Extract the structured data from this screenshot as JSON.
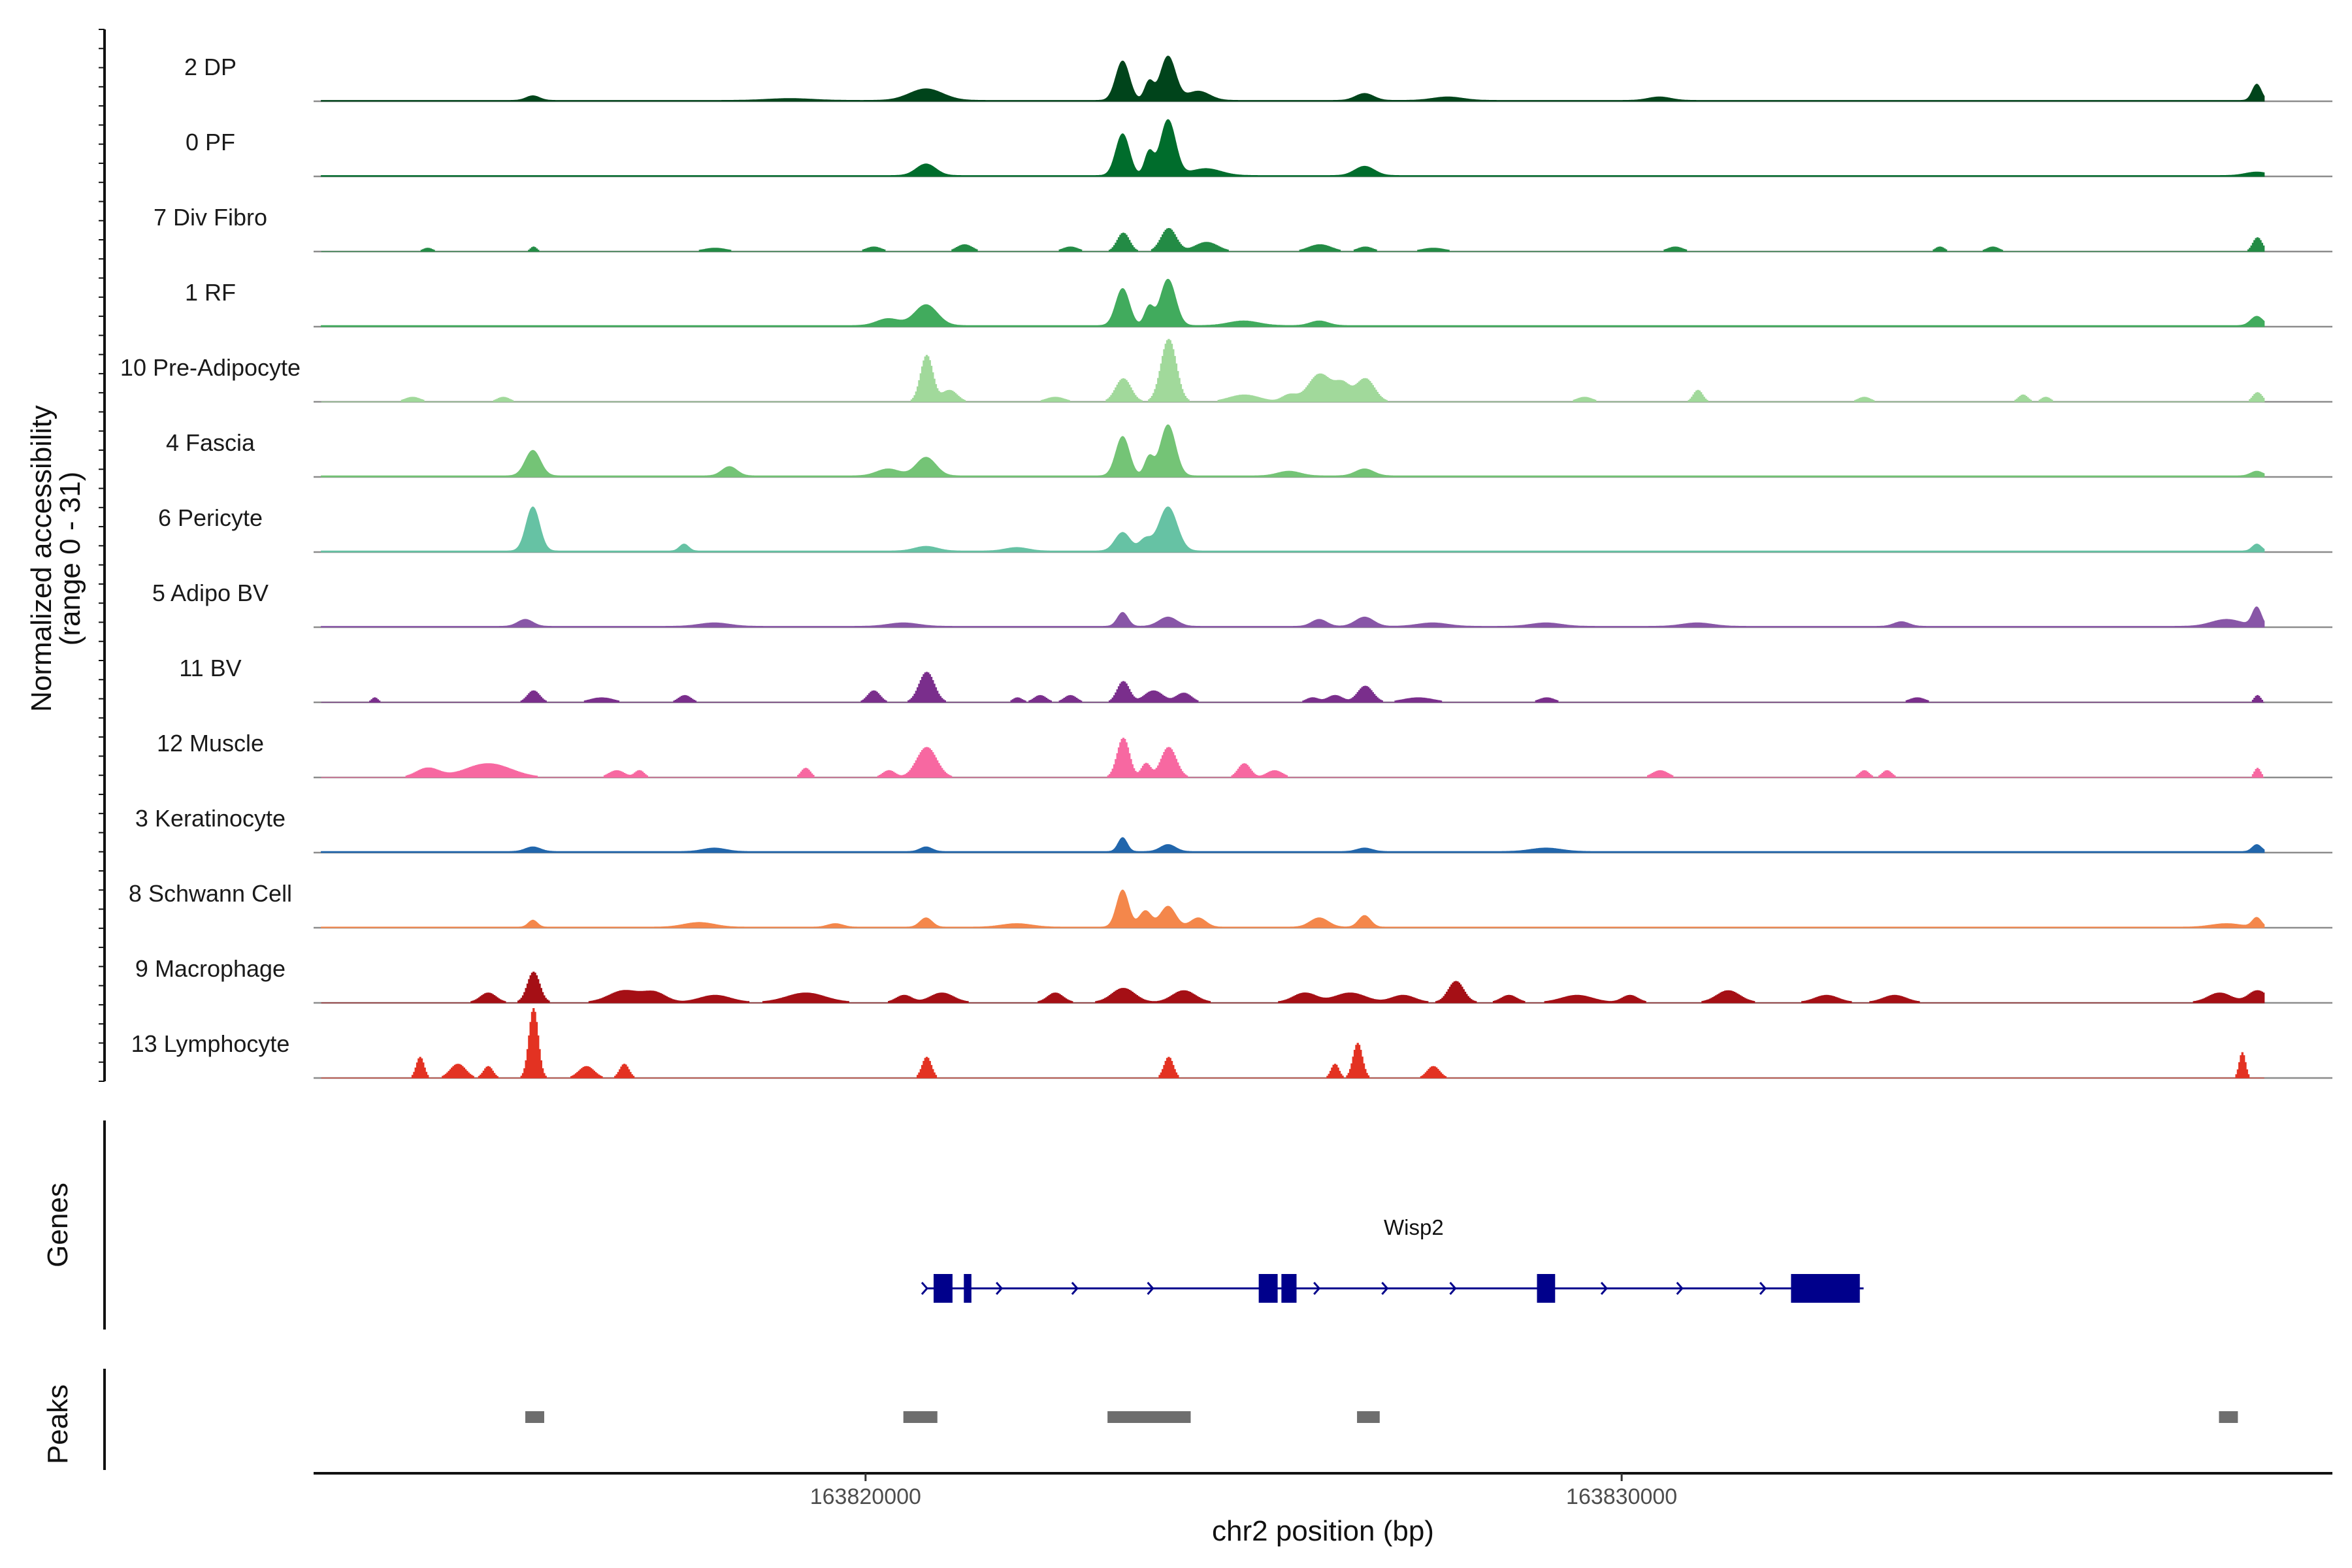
{
  "chart_data": {
    "type": "area",
    "title": "",
    "ylabel_line1": "Normalized accessibility",
    "ylabel_line2": "(range 0 - 31)",
    "y_range": [
      0,
      31
    ],
    "xlabel": "chr2 position (bp)",
    "chromosome": "chr2",
    "x_range": [
      163812700,
      163839400
    ],
    "x_ticks": [
      {
        "value": 163820000,
        "label": "163820000"
      },
      {
        "value": 163830000,
        "label": "163830000"
      }
    ],
    "genes_label": "Genes",
    "peaks_label": "Peaks",
    "tracks": [
      {
        "name": "2 DP",
        "color": "#00441b",
        "style": "smooth",
        "baseline": 0.4,
        "peaks": [
          [
            163823400,
            17,
            90
          ],
          [
            163824000,
            19,
            100
          ],
          [
            163823750,
            8,
            60
          ],
          [
            163820800,
            5,
            220
          ],
          [
            163815600,
            2,
            90
          ],
          [
            163826600,
            3,
            120
          ],
          [
            163824400,
            4,
            150
          ],
          [
            163838400,
            7,
            60
          ],
          [
            163827700,
            1.5,
            200
          ],
          [
            163830500,
            1.5,
            150
          ],
          [
            163819000,
            0.8,
            300
          ]
        ]
      },
      {
        "name": "0 PF",
        "color": "#006d2c",
        "style": "smooth",
        "baseline": 0.4,
        "peaks": [
          [
            163823400,
            18,
            90
          ],
          [
            163824000,
            24,
            100
          ],
          [
            163823750,
            10,
            60
          ],
          [
            163820800,
            5,
            130
          ],
          [
            163826600,
            4,
            130
          ],
          [
            163838400,
            1.5,
            150
          ],
          [
            163824500,
            3,
            200
          ]
        ]
      },
      {
        "name": "7 Div Fibro",
        "color": "#238b45",
        "style": "blocky",
        "baseline": 0,
        "peaks": [
          [
            163823400,
            8,
            80
          ],
          [
            163824000,
            10,
            100
          ],
          [
            163824500,
            4,
            150
          ],
          [
            163822700,
            2,
            100
          ],
          [
            163826000,
            3,
            150
          ],
          [
            163826600,
            2,
            100
          ],
          [
            163820100,
            2,
            100
          ],
          [
            163821300,
            3,
            100
          ],
          [
            163815600,
            2,
            40
          ],
          [
            163814200,
            1.5,
            60
          ],
          [
            163838400,
            6,
            60
          ],
          [
            163830700,
            2,
            100
          ],
          [
            163834200,
            2,
            60
          ],
          [
            163834900,
            2,
            80
          ],
          [
            163818000,
            1.5,
            150
          ],
          [
            163827500,
            1.5,
            150
          ]
        ]
      },
      {
        "name": "1 RF",
        "color": "#41ab5d",
        "style": "smooth",
        "baseline": 0.5,
        "peaks": [
          [
            163823400,
            16,
            90
          ],
          [
            163824000,
            20,
            100
          ],
          [
            163823750,
            8,
            60
          ],
          [
            163820800,
            9,
            150
          ],
          [
            163820300,
            3,
            150
          ],
          [
            163826000,
            2,
            120
          ],
          [
            163838400,
            4,
            80
          ],
          [
            163825000,
            2,
            200
          ]
        ]
      },
      {
        "name": "10 Pre-Adipocyte",
        "color": "#a1d99b",
        "style": "blocky",
        "baseline": 0,
        "peaks": [
          [
            163824000,
            27,
            100
          ],
          [
            163823400,
            10,
            100
          ],
          [
            163820800,
            20,
            80
          ],
          [
            163821100,
            5,
            100
          ],
          [
            163826000,
            12,
            150
          ],
          [
            163826600,
            10,
            120
          ],
          [
            163826300,
            7,
            100
          ],
          [
            163825000,
            3,
            200
          ],
          [
            163814000,
            2,
            100
          ],
          [
            163815200,
            2,
            80
          ],
          [
            163822500,
            2,
            120
          ],
          [
            163831000,
            5,
            60
          ],
          [
            163833200,
            2,
            80
          ],
          [
            163835300,
            3,
            60
          ],
          [
            163835600,
            2,
            60
          ],
          [
            163829500,
            2,
            100
          ],
          [
            163838400,
            4,
            60
          ],
          [
            163825600,
            3,
            100
          ]
        ]
      },
      {
        "name": "4 Fascia",
        "color": "#74c476",
        "style": "smooth",
        "baseline": 0.5,
        "peaks": [
          [
            163823400,
            17,
            90
          ],
          [
            163824000,
            22,
            100
          ],
          [
            163823750,
            8,
            60
          ],
          [
            163815600,
            11,
            100
          ],
          [
            163820800,
            8,
            130
          ],
          [
            163820300,
            3,
            150
          ],
          [
            163818200,
            4,
            100
          ],
          [
            163826600,
            3,
            120
          ],
          [
            163825600,
            2,
            150
          ],
          [
            163838400,
            2,
            80
          ]
        ]
      },
      {
        "name": "6 Pericyte",
        "color": "#66c2a4",
        "style": "smooth",
        "baseline": 0.5,
        "peaks": [
          [
            163815600,
            19,
            90
          ],
          [
            163824000,
            19,
            120
          ],
          [
            163823400,
            8,
            100
          ],
          [
            163823700,
            5,
            80
          ],
          [
            163817600,
            3,
            60
          ],
          [
            163820800,
            2,
            150
          ],
          [
            163838400,
            3,
            60
          ],
          [
            163822000,
            1.5,
            150
          ]
        ]
      },
      {
        "name": "5 Adipo BV",
        "color": "#8856a7",
        "style": "smooth",
        "baseline": 0.4,
        "peaks": [
          [
            163823400,
            6,
            70
          ],
          [
            163824000,
            4,
            120
          ],
          [
            163815500,
            3,
            100
          ],
          [
            163826600,
            4,
            120
          ],
          [
            163826000,
            3,
            100
          ],
          [
            163838400,
            8,
            60
          ],
          [
            163838000,
            3,
            200
          ],
          [
            163827500,
            1.5,
            200
          ],
          [
            163829000,
            1.5,
            200
          ],
          [
            163818000,
            1.5,
            200
          ],
          [
            163820500,
            1.5,
            200
          ],
          [
            163831000,
            1.5,
            200
          ],
          [
            163833700,
            2,
            100
          ]
        ]
      },
      {
        "name": "11 BV",
        "color": "#7a2e8c",
        "style": "blocky",
        "baseline": 0,
        "peaks": [
          [
            163820800,
            13,
            100
          ],
          [
            163820100,
            5,
            80
          ],
          [
            163823400,
            9,
            80
          ],
          [
            163823800,
            5,
            120
          ],
          [
            163824200,
            4,
            100
          ],
          [
            163826600,
            7,
            100
          ],
          [
            163826200,
            3,
            100
          ],
          [
            163822300,
            3,
            80
          ],
          [
            163822700,
            3,
            80
          ],
          [
            163822000,
            2,
            60
          ],
          [
            163815600,
            5,
            80
          ],
          [
            163816500,
            2,
            150
          ],
          [
            163817600,
            3,
            80
          ],
          [
            163813500,
            2,
            40
          ],
          [
            163825900,
            2,
            80
          ],
          [
            163827300,
            2,
            200
          ],
          [
            163829000,
            2,
            100
          ],
          [
            163833900,
            2,
            100
          ],
          [
            163838400,
            3,
            40
          ]
        ]
      },
      {
        "name": "12 Muscle",
        "color": "#f768a1",
        "style": "blocky",
        "baseline": 0,
        "peaks": [
          [
            163820800,
            13,
            130
          ],
          [
            163820300,
            3,
            80
          ],
          [
            163823400,
            17,
            80
          ],
          [
            163824000,
            13,
            100
          ],
          [
            163823700,
            6,
            60
          ],
          [
            163825000,
            6,
            80
          ],
          [
            163825400,
            3,
            100
          ],
          [
            163815000,
            6,
            300
          ],
          [
            163814200,
            4,
            150
          ],
          [
            163816700,
            3,
            100
          ],
          [
            163817000,
            3,
            60
          ],
          [
            163819200,
            4,
            60
          ],
          [
            163830500,
            3,
            100
          ],
          [
            163833200,
            3,
            60
          ],
          [
            163833500,
            3,
            60
          ],
          [
            163838400,
            4,
            40
          ]
        ]
      },
      {
        "name": "3 Keratinocyte",
        "color": "#2166ac",
        "style": "smooth",
        "baseline": 0.5,
        "peaks": [
          [
            163823400,
            6,
            60
          ],
          [
            163824000,
            3,
            100
          ],
          [
            163815600,
            2,
            100
          ],
          [
            163820800,
            2,
            80
          ],
          [
            163838400,
            3,
            60
          ],
          [
            163818000,
            1.5,
            150
          ],
          [
            163826600,
            1.5,
            100
          ],
          [
            163829000,
            1.5,
            200
          ]
        ]
      },
      {
        "name": "8 Schwann Cell",
        "color": "#f4874b",
        "style": "smooth",
        "baseline": 0.3,
        "peaks": [
          [
            163823400,
            16,
            80
          ],
          [
            163824000,
            9,
            100
          ],
          [
            163823700,
            7,
            80
          ],
          [
            163824400,
            4,
            100
          ],
          [
            163826600,
            5,
            80
          ],
          [
            163826000,
            4,
            120
          ],
          [
            163820800,
            4,
            80
          ],
          [
            163815600,
            3,
            60
          ],
          [
            163817800,
            2,
            200
          ],
          [
            163819600,
            1.5,
            100
          ],
          [
            163838400,
            4,
            60
          ],
          [
            163838000,
            1.5,
            200
          ],
          [
            163822000,
            1.5,
            200
          ]
        ]
      },
      {
        "name": "9 Macrophage",
        "color": "#a50f15",
        "style": "blocky",
        "baseline": 0.3,
        "peaks": [
          [
            163815600,
            13,
            80
          ],
          [
            163815000,
            4,
            100
          ],
          [
            163816800,
            5,
            200
          ],
          [
            163817200,
            4,
            150
          ],
          [
            163818000,
            3,
            200
          ],
          [
            163819200,
            4,
            250
          ],
          [
            163820500,
            3,
            100
          ],
          [
            163821000,
            4,
            150
          ],
          [
            163822500,
            4,
            100
          ],
          [
            163823400,
            6,
            150
          ],
          [
            163824200,
            5,
            150
          ],
          [
            163825800,
            4,
            150
          ],
          [
            163826400,
            4,
            200
          ],
          [
            163827100,
            3,
            150
          ],
          [
            163827800,
            9,
            100
          ],
          [
            163828500,
            3,
            100
          ],
          [
            163829400,
            3,
            200
          ],
          [
            163830100,
            3,
            100
          ],
          [
            163831400,
            5,
            150
          ],
          [
            163832700,
            3,
            150
          ],
          [
            163833600,
            3,
            150
          ],
          [
            163838400,
            5,
            120
          ],
          [
            163837900,
            4,
            150
          ]
        ]
      },
      {
        "name": "13 Lymphocyte",
        "color": "#e33222",
        "style": "blocky",
        "baseline": 0,
        "peaks": [
          [
            163815600,
            30,
            60
          ],
          [
            163814100,
            9,
            50
          ],
          [
            163814600,
            6,
            100
          ],
          [
            163815000,
            5,
            60
          ],
          [
            163816300,
            5,
            100
          ],
          [
            163816800,
            6,
            60
          ],
          [
            163820800,
            9,
            60
          ],
          [
            163824000,
            9,
            60
          ],
          [
            163826500,
            15,
            60
          ],
          [
            163826200,
            6,
            50
          ],
          [
            163827500,
            5,
            80
          ],
          [
            163838200,
            11,
            40
          ]
        ]
      }
    ],
    "gene": {
      "name": "Wisp2",
      "strand": "+",
      "start": 163820900,
      "end": 163833200,
      "color": "#00008b",
      "exons": [
        [
          163820900,
          163821150
        ],
        [
          163821300,
          163821400
        ],
        [
          163825200,
          163825450
        ],
        [
          163825500,
          163825700
        ],
        [
          163828880,
          163829120
        ],
        [
          163832240,
          163833150
        ]
      ],
      "arrows": [
        163821800,
        163822800,
        163823800,
        163826000,
        163826900,
        163827800,
        163829800,
        163830800,
        163831900
      ]
    },
    "peaks_regions": [
      [
        163815500,
        163815750
      ],
      [
        163820500,
        163820950
      ],
      [
        163823200,
        163824300
      ],
      [
        163826500,
        163826800
      ],
      [
        163837900,
        163838150
      ]
    ],
    "peak_color": "#6e6e6e"
  }
}
